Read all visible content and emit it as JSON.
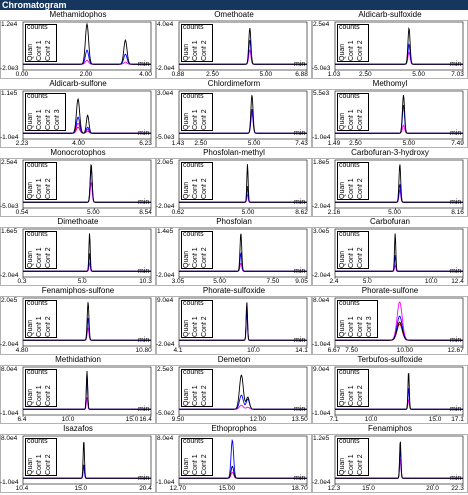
{
  "window": {
    "title": "Chromatogram"
  },
  "legend": {
    "counts_label": "counts",
    "traces": [
      "Quan",
      "Conf 1",
      "Conf 2",
      "Conf 3"
    ],
    "x_unit": "min"
  },
  "colors": {
    "quan": "#000000",
    "conf1": "#0000ff",
    "conf2": "#ff00ff",
    "conf3": "#ff0000"
  },
  "chart_data": [
    {
      "type": "line",
      "title": "Methamidophos",
      "ylim": [
        "-2.0e3",
        "1.2e4"
      ],
      "xticks": [
        "0.00",
        "2.00",
        "4.00"
      ],
      "xlim": [
        0,
        4
      ],
      "traces": 3,
      "peaks": [
        {
          "rt": 2.0,
          "h": [
            1.0,
            0.35,
            0.1
          ],
          "w": 0.05
        },
        {
          "rt": 3.2,
          "h": [
            0.6,
            0.25,
            0.05
          ],
          "w": 0.05
        }
      ]
    },
    {
      "type": "line",
      "title": "Omethoate",
      "ylim": [
        "-2.0e4",
        "4.0e4"
      ],
      "xticks": [
        "0.88",
        "2.50",
        "5.00",
        "6.88"
      ],
      "xlim": [
        0.88,
        6.88
      ],
      "traces": 3,
      "peaks": [
        {
          "rt": 4.2,
          "h": [
            0.9,
            0.6,
            0.35
          ],
          "w": 0.05
        }
      ]
    },
    {
      "type": "line",
      "title": "Aldicarb-sulfoxide",
      "ylim": [
        "-5.0e3",
        "2.5e4"
      ],
      "xticks": [
        "1.03",
        "2.50",
        "5.00",
        "7.03"
      ],
      "xlim": [
        1.03,
        7.03
      ],
      "traces": 3,
      "peaks": [
        {
          "rt": 4.5,
          "h": [
            0.9,
            0.5,
            0.3
          ],
          "w": 0.05
        }
      ]
    },
    {
      "type": "line",
      "title": "Aldicarb-sulfone",
      "ylim": [
        "-1.0e4",
        "1.1e5"
      ],
      "xticks": [
        "2.23",
        "4.00",
        "6.23"
      ],
      "xlim": [
        2.23,
        6.23
      ],
      "traces": 4,
      "peaks": [
        {
          "rt": 3.95,
          "h": [
            0.85,
            0.4,
            0.25,
            0.15
          ],
          "w": 0.05
        },
        {
          "rt": 4.25,
          "h": [
            0.45,
            0.15,
            0.1,
            0.05
          ],
          "w": 0.04
        }
      ]
    },
    {
      "type": "line",
      "title": "Chlordimeform",
      "ylim": [
        "-5.0e3",
        "3.0e4"
      ],
      "xticks": [
        "1.43",
        "2.50",
        "5.00",
        "7.43"
      ],
      "xlim": [
        1.43,
        7.43
      ],
      "traces": 3,
      "peaks": [
        {
          "rt": 4.85,
          "h": [
            0.95,
            0.6,
            0.5
          ],
          "w": 0.05
        }
      ]
    },
    {
      "type": "line",
      "title": "Methomyl",
      "ylim": [
        "-1.0e4",
        "5.5e3"
      ],
      "xticks": [
        "1.49",
        "2.50",
        "5.00",
        "7.49"
      ],
      "xlim": [
        1.49,
        7.49
      ],
      "traces": 3,
      "peaks": [
        {
          "rt": 4.7,
          "h": [
            0.95,
            0.7,
            0.2
          ],
          "w": 0.05
        }
      ]
    },
    {
      "type": "line",
      "title": "Monocrotophos",
      "ylim": [
        "-5.0e3",
        "2.5e4"
      ],
      "xticks": [
        "0.54",
        "5.00",
        "8.54"
      ],
      "xlim": [
        0.54,
        8.54
      ],
      "traces": 3,
      "peaks": [
        {
          "rt": 4.8,
          "h": [
            0.95,
            0.85,
            0.5
          ],
          "w": 0.06
        }
      ]
    },
    {
      "type": "line",
      "title": "Phosfolan-methyl",
      "ylim": [
        "-2.0e4",
        "2.0e5"
      ],
      "xticks": [
        "0.62",
        "5.00",
        "8.62"
      ],
      "xlim": [
        0.62,
        8.62
      ],
      "traces": 3,
      "peaks": [
        {
          "rt": 4.9,
          "h": [
            0.95,
            0.4,
            0.2
          ],
          "w": 0.04
        }
      ]
    },
    {
      "type": "line",
      "title": "Carbofuran-3-hydroxy",
      "ylim": [
        "-2.0e4",
        "1.8e5"
      ],
      "xticks": [
        "2.16",
        "5.00",
        "8.16"
      ],
      "xlim": [
        2.16,
        8.16
      ],
      "traces": 3,
      "peaks": [
        {
          "rt": 5.2,
          "h": [
            0.95,
            0.45,
            0.3
          ],
          "w": 0.04
        }
      ]
    },
    {
      "type": "line",
      "title": "Dimethoate",
      "ylim": [
        "-2.0e4",
        "1.6e5"
      ],
      "xticks": [
        "0.3",
        "5.0",
        "10.3"
      ],
      "xlim": [
        0.3,
        10.3
      ],
      "traces": 3,
      "peaks": [
        {
          "rt": 5.5,
          "h": [
            0.95,
            0.45,
            0.2
          ],
          "w": 0.05
        }
      ]
    },
    {
      "type": "line",
      "title": "Phosfolan",
      "ylim": [
        "-2.0e4",
        "1.4e5"
      ],
      "xticks": [
        "3.05",
        "5.00",
        "7.50",
        "9.05"
      ],
      "xlim": [
        3.05,
        9.05
      ],
      "traces": 3,
      "peaks": [
        {
          "rt": 5.95,
          "h": [
            0.95,
            0.45,
            0.2
          ],
          "w": 0.04
        }
      ]
    },
    {
      "type": "line",
      "title": "Carbofuran",
      "ylim": [
        "-2.0e4",
        "3.0e5"
      ],
      "xticks": [
        "2.4",
        "5.0",
        "10.0",
        "12.4"
      ],
      "xlim": [
        2.4,
        12.4
      ],
      "traces": 3,
      "peaks": [
        {
          "rt": 7.1,
          "h": [
            0.95,
            0.4,
            0.15
          ],
          "w": 0.05
        }
      ]
    },
    {
      "type": "line",
      "title": "Fenamiphos-sulfone",
      "ylim": [
        "-2.0e4",
        "2.0e5"
      ],
      "xticks": [
        "4.80",
        "10.80"
      ],
      "xlim": [
        4.8,
        10.8
      ],
      "traces": 3,
      "peaks": [
        {
          "rt": 7.85,
          "h": [
            0.95,
            0.55,
            0.3
          ],
          "w": 0.04
        }
      ]
    },
    {
      "type": "line",
      "title": "Phorate-sulfoxide",
      "ylim": [
        "-2.0e4",
        "9.0e4"
      ],
      "xticks": [
        "4.1",
        "10.0",
        "14.1"
      ],
      "xlim": [
        4.1,
        14.1
      ],
      "traces": 3,
      "peaks": [
        {
          "rt": 9.4,
          "h": [
            0.95,
            0.75,
            0.95
          ],
          "w": 0.05
        }
      ]
    },
    {
      "type": "line",
      "title": "Phorate-sulfone",
      "ylim": [
        "-1.0e4",
        "8.0e4"
      ],
      "xticks": [
        "6.67",
        "7.50",
        "10.00",
        "12.67"
      ],
      "xlim": [
        6.67,
        12.67
      ],
      "traces": 4,
      "peaks": [
        {
          "rt": 9.7,
          "h": [
            0.45,
            0.6,
            0.95,
            0.4
          ],
          "w": 0.12
        }
      ]
    },
    {
      "type": "line",
      "title": "Methidathion",
      "ylim": [
        "-1.0e4",
        "8.0e4"
      ],
      "xticks": [
        "6.4",
        "10.0",
        "15.0",
        "16.4"
      ],
      "xlim": [
        6.4,
        16.4
      ],
      "traces": 3,
      "peaks": [
        {
          "rt": 11.4,
          "h": [
            0.95,
            0.9,
            0.3
          ],
          "w": 0.05
        }
      ]
    },
    {
      "type": "line",
      "title": "Demeton",
      "ylim": [
        "-5.0e2",
        "2.5e3"
      ],
      "xticks": [
        "9.50",
        "12.00",
        "13.50"
      ],
      "xlim": [
        9.5,
        13.5
      ],
      "traces": 3,
      "peaks": [
        {
          "rt": 11.45,
          "h": [
            0.85,
            0.35,
            0.1
          ],
          "w": 0.06
        },
        {
          "rt": 11.65,
          "h": [
            0.3,
            0.25,
            0.05
          ],
          "w": 0.05
        }
      ]
    },
    {
      "type": "line",
      "title": "Terbufos-sulfoxide",
      "ylim": [
        "-1.0e4",
        "9.0e4"
      ],
      "xticks": [
        "7.1",
        "10.0",
        "15.0",
        "17.1"
      ],
      "xlim": [
        7.1,
        17.1
      ],
      "traces": 3,
      "peaks": [
        {
          "rt": 12.85,
          "h": [
            0.95,
            0.55,
            0.25
          ],
          "w": 0.05
        }
      ]
    },
    {
      "type": "line",
      "title": "Isazafos",
      "ylim": [
        "-1.0e4",
        "8.0e4"
      ],
      "xticks": [
        "10.4",
        "15.0",
        "20.4"
      ],
      "xlim": [
        10.4,
        20.4
      ],
      "traces": 3,
      "peaks": [
        {
          "rt": 15.15,
          "h": [
            0.95,
            0.35,
            0.3
          ],
          "w": 0.05
        }
      ]
    },
    {
      "type": "line",
      "title": "Ethoprophos",
      "ylim": [
        "-1.0e4",
        "8.0e4"
      ],
      "xticks": [
        "12.70",
        "15.00",
        "18.70"
      ],
      "xlim": [
        12.7,
        18.7
      ],
      "traces": 3,
      "peaks": [
        {
          "rt": 15.2,
          "h": [
            0.3,
            0.95,
            0.15
          ],
          "w": 0.06
        }
      ]
    },
    {
      "type": "line",
      "title": "Fenamiphos",
      "ylim": [
        "-2.0e4",
        "1.2e5"
      ],
      "xticks": [
        "12.3",
        "15.0",
        "20.0",
        "22.3"
      ],
      "xlim": [
        12.3,
        22.3
      ],
      "traces": 3,
      "peaks": [
        {
          "rt": 17.4,
          "h": [
            0.95,
            0.75,
            0.5
          ],
          "w": 0.05
        }
      ]
    }
  ]
}
